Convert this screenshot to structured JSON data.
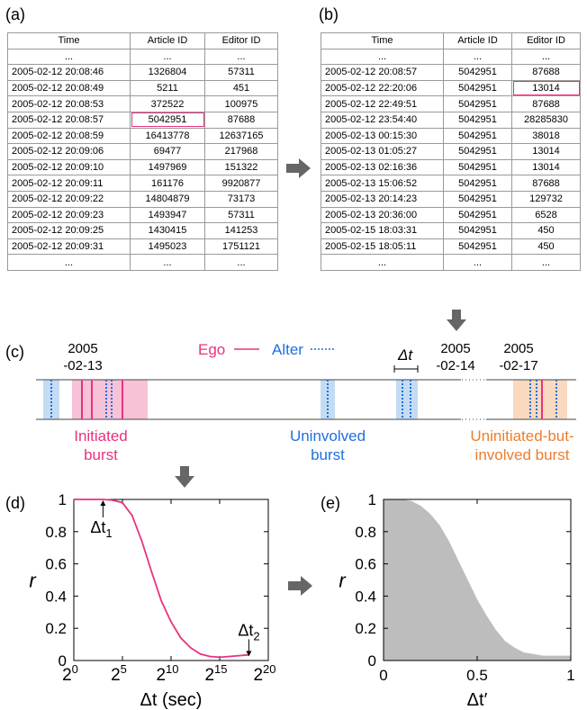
{
  "panels": {
    "a": "(a)",
    "b": "(b)",
    "c": "(c)",
    "d": "(d)",
    "e": "(e)"
  },
  "table_a": {
    "headers": [
      "Time",
      "Article ID",
      "Editor ID"
    ],
    "ellipsis": "...",
    "rows": [
      [
        "2005-02-12   20:08:46",
        "1326804",
        "57311"
      ],
      [
        "2005-02-12   20:08:49",
        "5211",
        "451"
      ],
      [
        "2005-02-12   20:08:53",
        "372522",
        "100975"
      ],
      [
        "2005-02-12   20:08:57",
        "5042951",
        "87688"
      ],
      [
        "2005-02-12   20:08:59",
        "16413778",
        "12637165"
      ],
      [
        "2005-02-12   20:09:06",
        "69477",
        "217968"
      ],
      [
        "2005-02-12   20:09:10",
        "1497969",
        "151322"
      ],
      [
        "2005-02-12   20:09:11",
        "161176",
        "9920877"
      ],
      [
        "2005-02-12   20:09:22",
        "14804879",
        "73173"
      ],
      [
        "2005-02-12   20:09:23",
        "1493947",
        "57311"
      ],
      [
        "2005-02-12   20:09:25",
        "1430415",
        "141253"
      ],
      [
        "2005-02-12   20:09:31",
        "1495023",
        "1751121"
      ]
    ]
  },
  "table_b": {
    "headers": [
      "Time",
      "Article ID",
      "Editor ID"
    ],
    "ellipsis": "...",
    "rows": [
      [
        "2005-02-12   20:08:57",
        "5042951",
        "87688"
      ],
      [
        "2005-02-12   22:20:06",
        "5042951",
        "13014"
      ],
      [
        "2005-02-12   22:49:51",
        "5042951",
        "87688"
      ],
      [
        "2005-02-12   23:54:40",
        "5042951",
        "28285830"
      ],
      [
        "2005-02-13   00:15:30",
        "5042951",
        "38018"
      ],
      [
        "2005-02-13   01:05:27",
        "5042951",
        "13014"
      ],
      [
        "2005-02-13   02:16:36",
        "5042951",
        "13014"
      ],
      [
        "2005-02-13   15:06:52",
        "5042951",
        "87688"
      ],
      [
        "2005-02-13   20:14:23",
        "5042951",
        "129732"
      ],
      [
        "2005-02-13   20:36:00",
        "5042951",
        "6528"
      ],
      [
        "2005-02-15   18:03:31",
        "5042951",
        "450"
      ],
      [
        "2005-02-15   18:05:11",
        "5042951",
        "450"
      ]
    ]
  },
  "timeline": {
    "date1_year": "2005",
    "date1_md": "-02-13",
    "date2_year": "2005",
    "date2_md": "-02-14",
    "date3_year": "2005",
    "date3_md": "-02-17",
    "ego_label": "Ego",
    "alter_label": "Alter",
    "delta_label": "Δt",
    "burst1_line1": "Initiated",
    "burst1_line2": "burst",
    "burst2_line1": "Uninvolved",
    "burst2_line2": "burst",
    "burst3_line1": "Uninitiated-but-",
    "burst3_line2": "involved burst",
    "colors": {
      "ego": "#e8327f",
      "alter": "#1f6fe0",
      "initiated_bg": "#f7c2d8",
      "uninvolved_bg": "#c4dcf3",
      "uninit_bg": "#f9d9bf"
    }
  },
  "chart_data": [
    {
      "type": "line",
      "panel": "d",
      "xlabel": "Δt (sec)",
      "ylabel": "r",
      "x_scale": "log2",
      "xlim": [
        1,
        1048576
      ],
      "ylim": [
        0,
        1
      ],
      "x_ticks": [
        {
          "base": "2",
          "exp": "0"
        },
        {
          "base": "2",
          "exp": "5"
        },
        {
          "base": "2",
          "exp": "10"
        },
        {
          "base": "2",
          "exp": "15"
        },
        {
          "base": "2",
          "exp": "20"
        }
      ],
      "y_ticks": [
        "0",
        "0.2",
        "0.4",
        "0.6",
        "0.8",
        "1"
      ],
      "annotations": [
        {
          "text": "Δt",
          "sub": "1",
          "x": 8,
          "y": 1.0
        },
        {
          "text": "Δt",
          "sub": "2",
          "x": 262144,
          "y": 0.02
        }
      ],
      "color": "#e8327f",
      "x": [
        1,
        2,
        4,
        8,
        16,
        32,
        64,
        128,
        256,
        512,
        1024,
        2048,
        4096,
        8192,
        16384,
        32768,
        65536,
        131072,
        262144
      ],
      "values": [
        1.0,
        1.0,
        1.0,
        1.0,
        0.995,
        0.98,
        0.9,
        0.74,
        0.55,
        0.37,
        0.24,
        0.14,
        0.08,
        0.04,
        0.025,
        0.02,
        0.025,
        0.03,
        0.035
      ]
    },
    {
      "type": "area",
      "panel": "e",
      "xlabel": "Δt′",
      "ylabel": "r",
      "xlim": [
        0,
        1
      ],
      "ylim": [
        0,
        1
      ],
      "x_ticks": [
        "0",
        "0.5",
        "1"
      ],
      "y_ticks": [
        "0",
        "0.2",
        "0.4",
        "0.6",
        "0.8",
        "1"
      ],
      "color": "#bdbdbd",
      "x": [
        0,
        0.05,
        0.1,
        0.15,
        0.2,
        0.25,
        0.3,
        0.35,
        0.4,
        0.45,
        0.5,
        0.55,
        0.6,
        0.65,
        0.7,
        0.75,
        0.8,
        0.85,
        0.9,
        0.95,
        1.0
      ],
      "values": [
        1.0,
        1.0,
        1.0,
        0.99,
        0.96,
        0.91,
        0.84,
        0.74,
        0.62,
        0.5,
        0.38,
        0.28,
        0.19,
        0.12,
        0.08,
        0.05,
        0.04,
        0.03,
        0.03,
        0.03,
        0.03
      ]
    }
  ]
}
